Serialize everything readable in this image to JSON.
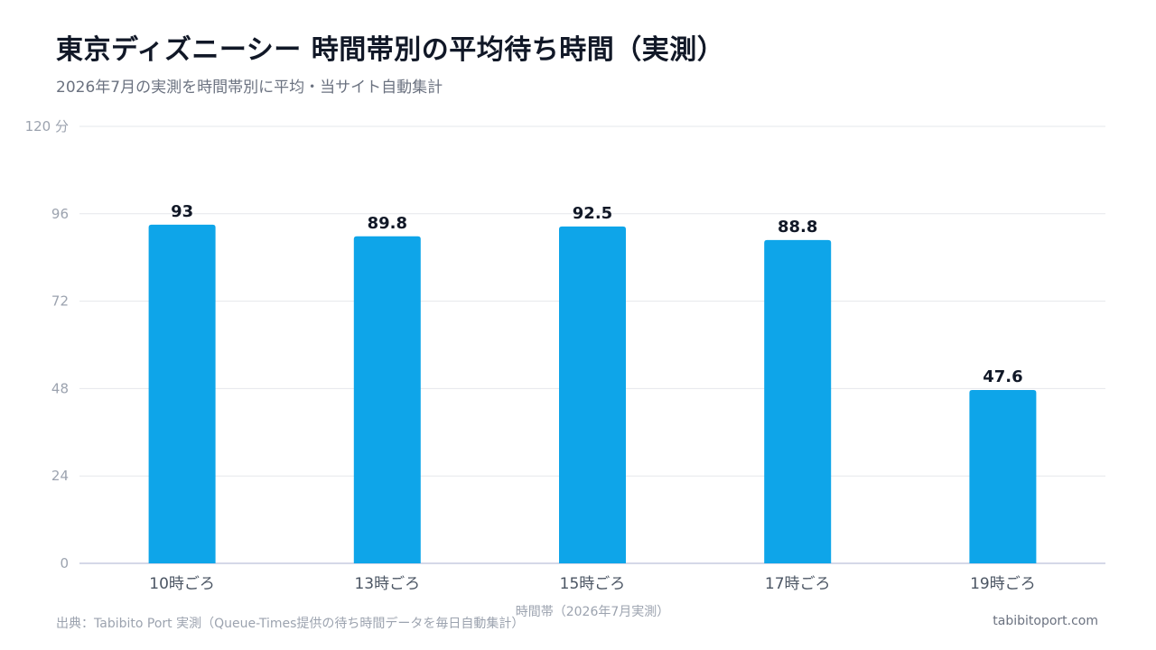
{
  "header": {
    "title": "東京ディズニーシー 時間帯別の平均待ち時間（実測）",
    "subtitle": "2026年7月の実測を時間帯別に平均・当サイト自動集計"
  },
  "footer": {
    "source": "出典：Tabibito Port 実測（Queue-Times提供の待ち時間データを毎日自動集計）",
    "site": "tabibitoport.com"
  },
  "chart_data": {
    "type": "bar",
    "categories": [
      "10時ごろ",
      "13時ごろ",
      "15時ごろ",
      "17時ごろ",
      "19時ごろ"
    ],
    "values": [
      93,
      89.8,
      92.5,
      88.8,
      47.6
    ],
    "value_labels": [
      "93",
      "89.8",
      "92.5",
      "88.8",
      "47.6"
    ],
    "xlabel": "時間帯（2026年7月実測）",
    "ylim": [
      0,
      120
    ],
    "yticks": [
      0,
      24,
      48,
      72,
      96,
      120
    ],
    "ytick_labels": [
      "0",
      "24",
      "48",
      "72",
      "96",
      "120 分"
    ],
    "grid": true,
    "colors": {
      "bar": "#0ea5e9",
      "grid": "#e5e7eb",
      "axis": "#c7cbe0",
      "tick_text": "#9ca3af",
      "cat_text": "#4b5563",
      "value_text": "#111827"
    }
  }
}
